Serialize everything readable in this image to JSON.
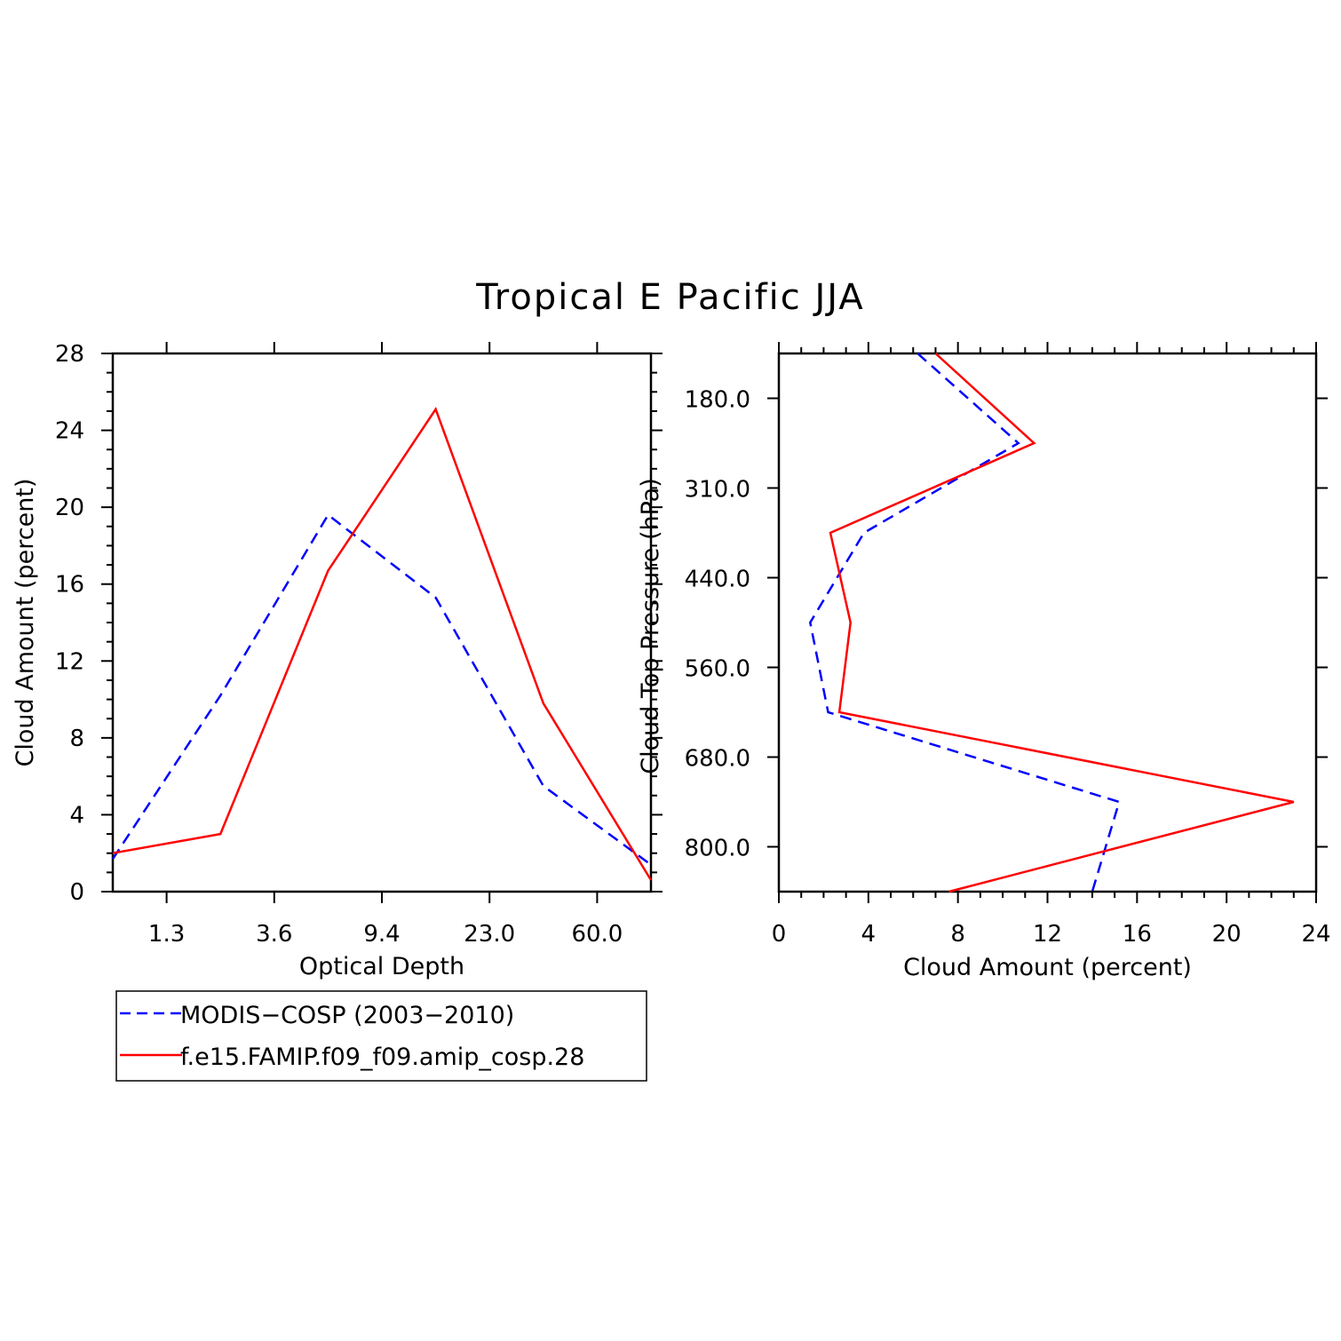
{
  "figure_title": "Tropical E Pacific JJA",
  "colors": {
    "obs": "#0000ff",
    "model": "#ff0000",
    "axis": "#000000"
  },
  "legend": {
    "entries": [
      {
        "label": "MODIS−COSP (2003−2010)",
        "style": "dashed",
        "color": "#0000ff"
      },
      {
        "label": "f.e15.FAMIP.f09_f09.amip_cosp.28",
        "style": "solid",
        "color": "#ff0000"
      }
    ]
  },
  "chart_data": [
    {
      "type": "line",
      "xlabel": "Optical Depth",
      "ylabel": "Cloud Amount (percent)",
      "ylim": [
        0,
        28
      ],
      "yticks": [
        "0",
        "4",
        "8",
        "12",
        "16",
        "20",
        "24",
        "28"
      ],
      "x_category_edges": [
        "1.3",
        "3.6",
        "9.4",
        "23.0",
        "60.0"
      ],
      "x_points": [
        0,
        1,
        2,
        3,
        4,
        5
      ],
      "series": [
        {
          "name": "MODIS−COSP (2003−2010)",
          "style": "dashed",
          "values": [
            1.7,
            10.2,
            19.6,
            15.3,
            5.5,
            1.4
          ]
        },
        {
          "name": "f.e15.FAMIP.f09_f09.amip_cosp.28",
          "style": "solid",
          "values": [
            2.0,
            3.0,
            16.7,
            25.1,
            9.8,
            0.6
          ]
        }
      ]
    },
    {
      "type": "line",
      "orientation": "horizontal",
      "xlabel": "Cloud Amount (percent)",
      "ylabel": "Cloud Top Pressure (hPa)",
      "xlim": [
        0,
        24
      ],
      "xticks": [
        "0",
        "4",
        "8",
        "12",
        "16",
        "20",
        "24"
      ],
      "y_level_edges": [
        "180.0",
        "310.0",
        "440.0",
        "560.0",
        "680.0",
        "800.0"
      ],
      "y_points": [
        0,
        1,
        2,
        3,
        4,
        5,
        6
      ],
      "series": [
        {
          "name": "MODIS−COSP (2003−2010)",
          "style": "dashed",
          "values": [
            6.2,
            10.7,
            3.8,
            1.4,
            2.2,
            15.2,
            14.0
          ]
        },
        {
          "name": "f.e15.FAMIP.f09_f09.amip_cosp.28",
          "style": "solid",
          "values": [
            7.0,
            11.4,
            2.3,
            3.2,
            2.7,
            23.0,
            7.6
          ]
        }
      ]
    }
  ]
}
